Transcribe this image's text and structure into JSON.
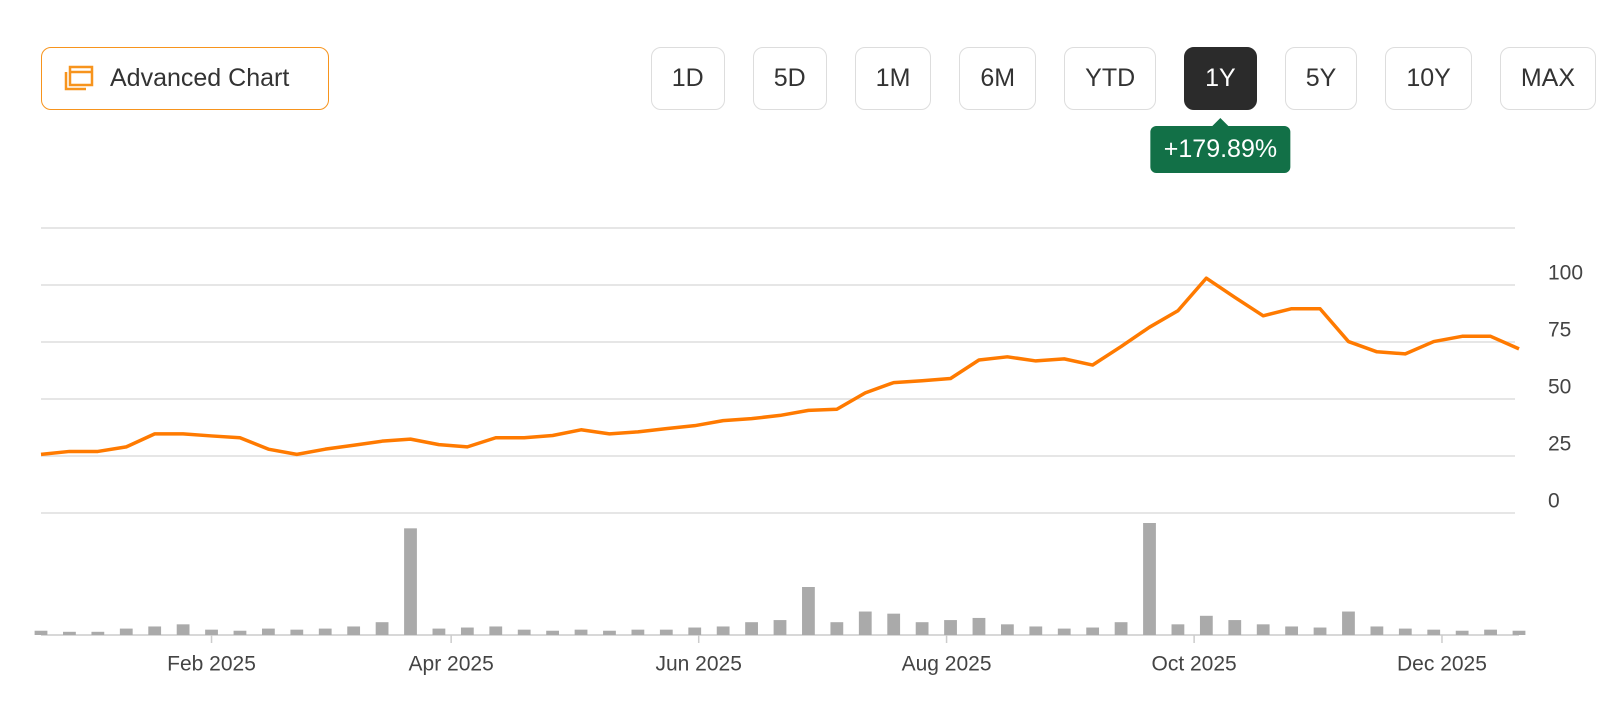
{
  "controls": {
    "advanced_chart": "Advanced Chart",
    "ranges": [
      "1D",
      "5D",
      "1M",
      "6M",
      "YTD",
      "1Y",
      "5Y",
      "10Y",
      "MAX"
    ],
    "selected_range": "1Y",
    "change": "+179.89%"
  },
  "chart_data": {
    "type": "line",
    "series": [
      {
        "color": "#ff7a00",
        "values": [
          25.7,
          27,
          27,
          29,
          34.7,
          34.7,
          33.8,
          33,
          28,
          25.7,
          28,
          29.7,
          31.5,
          32.4,
          30,
          29,
          33,
          33,
          34,
          36.5,
          34.7,
          35.6,
          37,
          38.3,
          40.5,
          41.4,
          42.8,
          45,
          45.5,
          52.7,
          57.2,
          58,
          59,
          67.1,
          68.5,
          66.7,
          67.6,
          64.9,
          73,
          81.5,
          88.7,
          103,
          94.6,
          86.5,
          89.6,
          89.6,
          75.2,
          70.7,
          69.8,
          75.2,
          77.5,
          77.5,
          72
        ]
      }
    ],
    "volume": {
      "color": "#aaaaaa",
      "values": [
        4,
        3,
        3,
        6,
        8,
        10,
        5,
        4,
        6,
        5,
        6,
        8,
        12,
        100,
        6,
        7,
        8,
        5,
        4,
        5,
        4,
        5,
        5,
        7,
        8,
        12,
        14,
        45,
        12,
        22,
        20,
        12,
        14,
        16,
        10,
        8,
        6,
        7,
        12,
        105,
        10,
        18,
        14,
        10,
        8,
        7,
        22,
        8,
        6,
        5,
        4,
        5,
        4
      ]
    },
    "xlim": [
      0,
      52
    ],
    "xticks": [
      {
        "value": 6,
        "label": "Feb 2025"
      },
      {
        "value": 14.43,
        "label": "Apr 2025"
      },
      {
        "value": 23.14,
        "label": "Jun 2025"
      },
      {
        "value": 31.86,
        "label": "Aug 2025"
      },
      {
        "value": 40.57,
        "label": "Oct 2025"
      },
      {
        "value": 49.29,
        "label": "Dec 2025"
      }
    ],
    "ylim": [
      0,
      125
    ],
    "yticks": [
      0,
      25,
      50,
      75,
      100
    ],
    "grid": true
  }
}
